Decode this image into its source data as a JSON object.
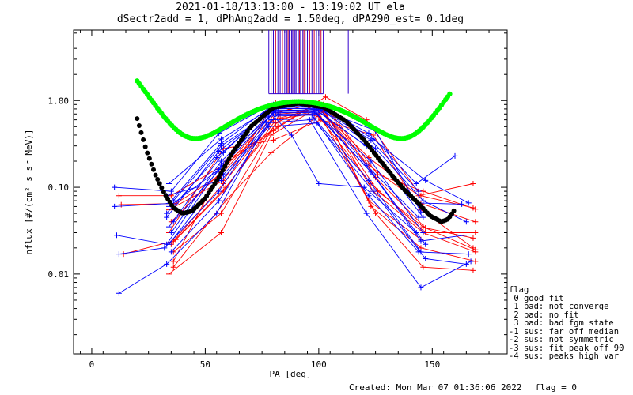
{
  "title_line1": "2021-01-18/13:13:00 - 13:19:02 UT ela",
  "title_line2": "dSectr2add = 1, dPhAng2add = 1.50deg, dPA290_est=   0.1deg",
  "created": "Created: Mon Mar 07 01:36:06 2022",
  "flag_status": "flag = 0",
  "flag_legend": {
    "title": "flag",
    "items": [
      " 0 good fit",
      " 1 bad: not converge",
      " 2 bad: no fit",
      " 3 bad: bad fgm state",
      "-1 sus: far off median",
      "-2 sus: not symmetric",
      "-3 sus: fit peak off 90",
      "-4 sus: peaks high var"
    ]
  },
  "colors": {
    "blue": "#0000ff",
    "red": "#ff0000",
    "green": "#00ff00",
    "black": "#000000",
    "tick_blue": "#3300cc",
    "tick_red": "#cc0033"
  },
  "chart_data": {
    "type": "scatter",
    "xlabel": "PA [deg]",
    "ylabel": "nflux [#/(cm² s sr MeV)]",
    "xlim": [
      -8,
      183
    ],
    "ylim": [
      0.0012,
      6.5
    ],
    "yscale": "log",
    "x_ticks": [
      0,
      50,
      100,
      150
    ],
    "x_tick_labels": [
      "0",
      "50",
      "100",
      "150"
    ],
    "y_ticks": [
      0.01,
      0.1,
      1.0
    ],
    "y_tick_labels": [
      "0.01",
      "0.10",
      "1.00"
    ],
    "green_fit": {
      "a": 0.95,
      "xc": 91,
      "w": 27,
      "b": 0.022,
      "c": 1.5,
      "range": [
        20,
        158
      ]
    },
    "black_fit": {
      "a": 0.93,
      "xc": 91,
      "w": 31,
      "range": [
        20,
        160
      ],
      "pts": [
        [
          20,
          0.62
        ],
        [
          24,
          0.27
        ],
        [
          28,
          0.14
        ],
        [
          32,
          0.085
        ],
        [
          36,
          0.058
        ],
        [
          40,
          0.05
        ],
        [
          44,
          0.053
        ],
        [
          50,
          0.075
        ],
        [
          56,
          0.13
        ],
        [
          62,
          0.25
        ],
        [
          70,
          0.5
        ],
        [
          80,
          0.83
        ],
        [
          91,
          0.93
        ],
        [
          102,
          0.84
        ],
        [
          112,
          0.58
        ],
        [
          120,
          0.35
        ],
        [
          126,
          0.22
        ],
        [
          132,
          0.14
        ],
        [
          138,
          0.092
        ],
        [
          144,
          0.065
        ],
        [
          149,
          0.047
        ],
        [
          154,
          0.04
        ],
        [
          157,
          0.043
        ],
        [
          160,
          0.056
        ]
      ]
    },
    "peak_ticks": [
      78,
      79,
      80,
      81,
      82,
      83,
      84,
      85,
      86,
      86.5,
      87,
      88,
      88.5,
      89,
      89.5,
      90,
      91,
      91.5,
      92,
      93,
      93.5,
      94,
      95,
      96,
      97,
      98,
      99,
      100,
      101,
      102,
      113
    ],
    "peak_ticks_red": [
      81,
      84,
      86.5,
      89,
      91.5,
      93.5,
      96,
      98,
      101
    ],
    "blue_lines": [
      [
        [
          10,
          0.06
        ],
        [
          34,
          0.065
        ],
        [
          57,
          0.32
        ],
        [
          78,
          0.82
        ],
        [
          98,
          0.8
        ],
        [
          121,
          0.3
        ],
        [
          144,
          0.066
        ],
        [
          163,
          0.064
        ]
      ],
      [
        [
          11,
          0.028
        ],
        [
          33,
          0.022
        ],
        [
          57,
          0.18
        ],
        [
          79,
          0.74
        ],
        [
          99,
          0.72
        ],
        [
          123,
          0.15
        ],
        [
          145,
          0.024
        ],
        [
          164,
          0.028
        ]
      ],
      [
        [
          12,
          0.017
        ],
        [
          32,
          0.02
        ],
        [
          56,
          0.09
        ],
        [
          78,
          0.66
        ],
        [
          97,
          0.68
        ],
        [
          122,
          0.08
        ],
        [
          144,
          0.018
        ],
        [
          166,
          0.017
        ]
      ],
      [
        [
          12,
          0.006
        ],
        [
          33,
          0.013
        ],
        [
          55,
          0.05
        ],
        [
          77,
          0.55
        ],
        [
          96,
          0.6
        ],
        [
          121,
          0.05
        ],
        [
          145,
          0.007
        ],
        [
          167,
          0.014
        ]
      ],
      [
        [
          10,
          0.1
        ],
        [
          35,
          0.09
        ],
        [
          56,
          0.42
        ],
        [
          79,
          0.9
        ],
        [
          98,
          0.92
        ],
        [
          122,
          0.42
        ],
        [
          143,
          0.11
        ],
        [
          160,
          0.23
        ]
      ],
      [
        [
          34,
          0.11
        ],
        [
          57,
          0.36
        ],
        [
          80,
          0.85
        ],
        [
          100,
          0.86
        ],
        [
          124,
          0.36
        ],
        [
          147,
          0.12
        ],
        [
          166,
          0.066
        ]
      ],
      [
        [
          33,
          0.045
        ],
        [
          56,
          0.26
        ],
        [
          79,
          0.77
        ],
        [
          99,
          0.78
        ],
        [
          124,
          0.26
        ],
        [
          146,
          0.045
        ]
      ],
      [
        [
          35,
          0.03
        ],
        [
          57,
          0.2
        ],
        [
          80,
          0.72
        ],
        [
          98,
          0.74
        ],
        [
          123,
          0.2
        ],
        [
          146,
          0.03
        ]
      ],
      [
        [
          34,
          0.022
        ],
        [
          58,
          0.14
        ],
        [
          82,
          0.7
        ],
        [
          99,
          0.7
        ],
        [
          124,
          0.14
        ],
        [
          147,
          0.022
        ]
      ],
      [
        [
          36,
          0.07
        ],
        [
          57,
          0.3
        ],
        [
          81,
          0.8
        ],
        [
          100,
          0.82
        ],
        [
          125,
          0.28
        ],
        [
          146,
          0.07
        ],
        [
          165,
          0.04
        ]
      ],
      [
        [
          33,
          0.05
        ],
        [
          55,
          0.22
        ],
        [
          78,
          0.76
        ],
        [
          88,
          0.4
        ],
        [
          100,
          0.11
        ],
        [
          120,
          0.1
        ],
        [
          143,
          0.03
        ]
      ],
      [
        [
          34,
          0.035
        ],
        [
          58,
          0.25
        ],
        [
          80,
          0.9
        ],
        [
          99,
          0.88
        ],
        [
          121,
          0.18
        ],
        [
          144,
          0.045
        ]
      ],
      [
        [
          35,
          0.018
        ],
        [
          56,
          0.07
        ],
        [
          79,
          0.6
        ],
        [
          98,
          0.62
        ],
        [
          122,
          0.12
        ],
        [
          145,
          0.018
        ]
      ],
      [
        [
          33,
          0.08
        ],
        [
          57,
          0.12
        ],
        [
          78,
          0.5
        ],
        [
          99,
          0.55
        ],
        [
          124,
          0.09
        ],
        [
          147,
          0.015
        ],
        [
          165,
          0.013
        ]
      ],
      [
        [
          34,
          0.06
        ],
        [
          56,
          0.16
        ],
        [
          81,
          0.76
        ],
        [
          101,
          0.79
        ],
        [
          123,
          0.35
        ],
        [
          144,
          0.09
        ]
      ],
      [
        [
          36,
          0.04
        ],
        [
          58,
          0.18
        ],
        [
          82,
          0.82
        ],
        [
          100,
          0.8
        ],
        [
          125,
          0.45
        ],
        [
          145,
          0.052
        ]
      ]
    ],
    "red_lines": [
      [
        [
          12,
          0.08
        ],
        [
          35,
          0.08
        ],
        [
          58,
          0.18
        ],
        [
          80,
          0.45
        ],
        [
          98,
          0.9
        ],
        [
          122,
          0.22
        ],
        [
          144,
          0.08
        ],
        [
          168,
          0.11
        ]
      ],
      [
        [
          13,
          0.063
        ],
        [
          37,
          0.065
        ],
        [
          57,
          0.14
        ],
        [
          81,
          0.72
        ],
        [
          100,
          0.95
        ],
        [
          124,
          0.09
        ],
        [
          146,
          0.03
        ],
        [
          169,
          0.018
        ]
      ],
      [
        [
          14,
          0.017
        ],
        [
          36,
          0.024
        ],
        [
          58,
          0.11
        ],
        [
          80,
          0.6
        ],
        [
          101,
          0.85
        ],
        [
          123,
          0.06
        ],
        [
          145,
          0.02
        ],
        [
          169,
          0.014
        ]
      ],
      [
        [
          34,
          0.01
        ],
        [
          57,
          0.03
        ],
        [
          79,
          0.4
        ],
        [
          102,
          0.9
        ],
        [
          125,
          0.13
        ],
        [
          147,
          0.034
        ],
        [
          168,
          0.026
        ]
      ],
      [
        [
          36,
          0.014
        ],
        [
          59,
          0.2
        ],
        [
          82,
          0.5
        ],
        [
          103,
          1.1
        ],
        [
          121,
          0.6
        ],
        [
          145,
          0.08
        ],
        [
          168,
          0.058
        ]
      ],
      [
        [
          35,
          0.022
        ],
        [
          58,
          0.09
        ],
        [
          83,
          0.7
        ],
        [
          102,
          0.78
        ],
        [
          126,
          0.09
        ],
        [
          146,
          0.035
        ],
        [
          169,
          0.019
        ]
      ],
      [
        [
          36,
          0.018
        ],
        [
          57,
          0.05
        ],
        [
          81,
          0.55
        ],
        [
          99,
          0.9
        ],
        [
          122,
          0.18
        ],
        [
          145,
          0.065
        ],
        [
          169,
          0.04
        ]
      ],
      [
        [
          34,
          0.03
        ],
        [
          58,
          0.28
        ],
        [
          80,
          0.35
        ],
        [
          101,
          0.6
        ],
        [
          124,
          0.4
        ],
        [
          145,
          0.055
        ],
        [
          168,
          0.02
        ]
      ],
      [
        [
          35,
          0.04
        ],
        [
          57,
          0.15
        ],
        [
          82,
          0.85
        ],
        [
          100,
          0.65
        ],
        [
          123,
          0.11
        ],
        [
          147,
          0.03
        ],
        [
          169,
          0.03
        ]
      ],
      [
        [
          36,
          0.012
        ],
        [
          59,
          0.07
        ],
        [
          79,
          0.25
        ],
        [
          102,
          0.75
        ],
        [
          125,
          0.05
        ],
        [
          146,
          0.012
        ],
        [
          168,
          0.011
        ]
      ],
      [
        [
          34,
          0.055
        ],
        [
          58,
          0.12
        ],
        [
          81,
          0.95
        ],
        [
          104,
          0.8
        ],
        [
          126,
          0.14
        ],
        [
          146,
          0.09
        ],
        [
          169,
          0.056
        ]
      ],
      [
        [
          37,
          0.025
        ],
        [
          59,
          0.1
        ],
        [
          83,
          0.62
        ],
        [
          100,
          0.72
        ],
        [
          122,
          0.07
        ],
        [
          145,
          0.025
        ]
      ]
    ]
  }
}
